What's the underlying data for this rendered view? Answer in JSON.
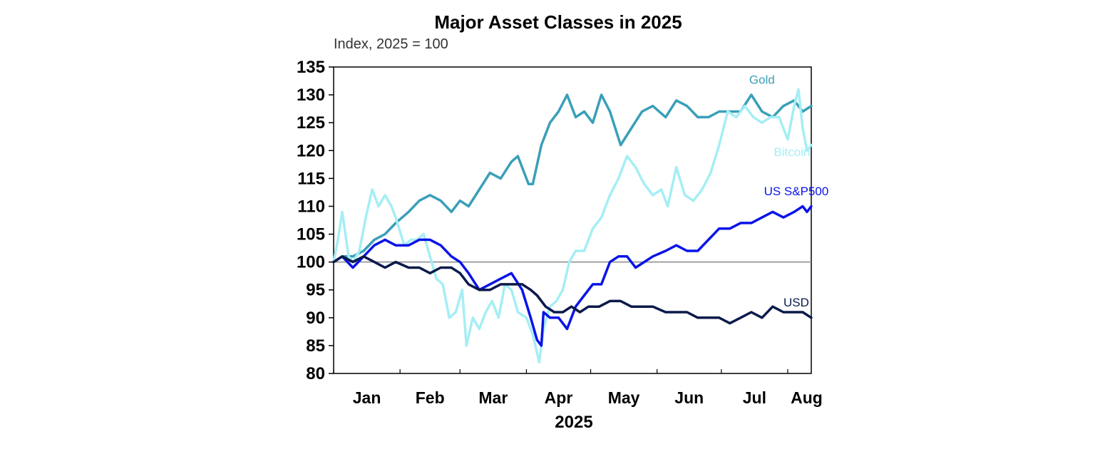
{
  "chart_data": {
    "type": "line",
    "title": "Major Asset Classes in 2025",
    "subtitle": "Index, 2025 = 100",
    "xlabel": "2025",
    "ylabel": "",
    "ylim": [
      80,
      135
    ],
    "yticks": [
      80,
      85,
      90,
      95,
      100,
      105,
      110,
      115,
      120,
      125,
      130,
      135
    ],
    "xlim": [
      "2025-01-01",
      "2025-08-12"
    ],
    "month_labels": [
      "Jan",
      "Feb",
      "Mar",
      "Apr",
      "May",
      "Jun",
      "Jul",
      "Aug"
    ],
    "month_dates": [
      "2025-01-01",
      "2025-02-01",
      "2025-03-01",
      "2025-04-01",
      "2025-05-01",
      "2025-06-01",
      "2025-07-01",
      "2025-08-01"
    ],
    "reference_line": 100,
    "grid": false,
    "series": [
      {
        "name": "Gold",
        "color": "#3a9fb9",
        "points": [
          [
            "2025-01-01",
            100
          ],
          [
            "2025-01-05",
            101
          ],
          [
            "2025-01-10",
            101
          ],
          [
            "2025-01-15",
            102
          ],
          [
            "2025-01-20",
            104
          ],
          [
            "2025-01-25",
            105
          ],
          [
            "2025-01-30",
            107
          ],
          [
            "2025-02-05",
            109
          ],
          [
            "2025-02-10",
            111
          ],
          [
            "2025-02-15",
            112
          ],
          [
            "2025-02-20",
            111
          ],
          [
            "2025-02-25",
            109
          ],
          [
            "2025-03-01",
            111
          ],
          [
            "2025-03-05",
            110
          ],
          [
            "2025-03-10",
            113
          ],
          [
            "2025-03-15",
            116
          ],
          [
            "2025-03-20",
            115
          ],
          [
            "2025-03-25",
            118
          ],
          [
            "2025-03-28",
            119
          ],
          [
            "2025-04-02",
            114
          ],
          [
            "2025-04-04",
            114
          ],
          [
            "2025-04-08",
            121
          ],
          [
            "2025-04-12",
            125
          ],
          [
            "2025-04-16",
            127
          ],
          [
            "2025-04-20",
            130
          ],
          [
            "2025-04-24",
            126
          ],
          [
            "2025-04-28",
            127
          ],
          [
            "2025-05-02",
            125
          ],
          [
            "2025-05-06",
            130
          ],
          [
            "2025-05-10",
            127
          ],
          [
            "2025-05-15",
            121
          ],
          [
            "2025-05-20",
            124
          ],
          [
            "2025-05-25",
            127
          ],
          [
            "2025-05-30",
            128
          ],
          [
            "2025-06-05",
            126
          ],
          [
            "2025-06-10",
            129
          ],
          [
            "2025-06-15",
            128
          ],
          [
            "2025-06-20",
            126
          ],
          [
            "2025-06-25",
            126
          ],
          [
            "2025-06-30",
            127
          ],
          [
            "2025-07-05",
            127
          ],
          [
            "2025-07-10",
            127
          ],
          [
            "2025-07-15",
            130
          ],
          [
            "2025-07-20",
            127
          ],
          [
            "2025-07-25",
            126
          ],
          [
            "2025-07-30",
            128
          ],
          [
            "2025-08-04",
            129
          ],
          [
            "2025-08-08",
            127
          ],
          [
            "2025-08-12",
            128
          ]
        ]
      },
      {
        "name": "Bitcoin",
        "color": "#a5eef4",
        "points": [
          [
            "2025-01-01",
            100
          ],
          [
            "2025-01-03",
            104
          ],
          [
            "2025-01-05",
            109
          ],
          [
            "2025-01-08",
            101
          ],
          [
            "2025-01-10",
            100
          ],
          [
            "2025-01-13",
            102
          ],
          [
            "2025-01-16",
            108
          ],
          [
            "2025-01-19",
            113
          ],
          [
            "2025-01-22",
            110
          ],
          [
            "2025-01-25",
            112
          ],
          [
            "2025-01-28",
            110
          ],
          [
            "2025-01-30",
            108
          ],
          [
            "2025-02-03",
            103
          ],
          [
            "2025-02-06",
            104
          ],
          [
            "2025-02-09",
            104
          ],
          [
            "2025-02-12",
            105
          ],
          [
            "2025-02-15",
            101
          ],
          [
            "2025-02-18",
            97
          ],
          [
            "2025-02-21",
            96
          ],
          [
            "2025-02-24",
            90
          ],
          [
            "2025-02-27",
            91
          ],
          [
            "2025-03-02",
            95
          ],
          [
            "2025-03-04",
            85
          ],
          [
            "2025-03-07",
            90
          ],
          [
            "2025-03-10",
            88
          ],
          [
            "2025-03-13",
            91
          ],
          [
            "2025-03-16",
            93
          ],
          [
            "2025-03-19",
            90
          ],
          [
            "2025-03-22",
            96
          ],
          [
            "2025-03-25",
            95
          ],
          [
            "2025-03-28",
            91
          ],
          [
            "2025-04-01",
            90
          ],
          [
            "2025-04-04",
            87
          ],
          [
            "2025-04-07",
            82
          ],
          [
            "2025-04-09",
            88
          ],
          [
            "2025-04-12",
            92
          ],
          [
            "2025-04-15",
            93
          ],
          [
            "2025-04-18",
            95
          ],
          [
            "2025-04-21",
            100
          ],
          [
            "2025-04-24",
            102
          ],
          [
            "2025-04-28",
            102
          ],
          [
            "2025-05-02",
            106
          ],
          [
            "2025-05-06",
            108
          ],
          [
            "2025-05-10",
            112
          ],
          [
            "2025-05-14",
            115
          ],
          [
            "2025-05-18",
            119
          ],
          [
            "2025-05-22",
            117
          ],
          [
            "2025-05-26",
            114
          ],
          [
            "2025-05-30",
            112
          ],
          [
            "2025-06-03",
            113
          ],
          [
            "2025-06-06",
            110
          ],
          [
            "2025-06-10",
            117
          ],
          [
            "2025-06-14",
            112
          ],
          [
            "2025-06-18",
            111
          ],
          [
            "2025-06-22",
            113
          ],
          [
            "2025-06-26",
            116
          ],
          [
            "2025-06-30",
            121
          ],
          [
            "2025-07-04",
            127
          ],
          [
            "2025-07-08",
            126
          ],
          [
            "2025-07-12",
            128
          ],
          [
            "2025-07-16",
            126
          ],
          [
            "2025-07-20",
            125
          ],
          [
            "2025-07-24",
            126
          ],
          [
            "2025-07-28",
            126
          ],
          [
            "2025-08-01",
            122
          ],
          [
            "2025-08-04",
            128
          ],
          [
            "2025-08-06",
            131
          ],
          [
            "2025-08-08",
            124
          ],
          [
            "2025-08-10",
            120
          ],
          [
            "2025-08-12",
            121
          ]
        ]
      },
      {
        "name": "US S&P500",
        "color": "#0a14e8",
        "points": [
          [
            "2025-01-01",
            100
          ],
          [
            "2025-01-05",
            101
          ],
          [
            "2025-01-10",
            99
          ],
          [
            "2025-01-15",
            101
          ],
          [
            "2025-01-20",
            103
          ],
          [
            "2025-01-25",
            104
          ],
          [
            "2025-01-30",
            103
          ],
          [
            "2025-02-05",
            103
          ],
          [
            "2025-02-10",
            104
          ],
          [
            "2025-02-15",
            104
          ],
          [
            "2025-02-20",
            103
          ],
          [
            "2025-02-25",
            101
          ],
          [
            "2025-03-01",
            100
          ],
          [
            "2025-03-05",
            98
          ],
          [
            "2025-03-10",
            95
          ],
          [
            "2025-03-15",
            96
          ],
          [
            "2025-03-20",
            97
          ],
          [
            "2025-03-25",
            98
          ],
          [
            "2025-03-30",
            95
          ],
          [
            "2025-04-03",
            90
          ],
          [
            "2025-04-06",
            86
          ],
          [
            "2025-04-08",
            85
          ],
          [
            "2025-04-09",
            91
          ],
          [
            "2025-04-12",
            90
          ],
          [
            "2025-04-16",
            90
          ],
          [
            "2025-04-20",
            88
          ],
          [
            "2025-04-24",
            92
          ],
          [
            "2025-04-28",
            94
          ],
          [
            "2025-05-02",
            96
          ],
          [
            "2025-05-06",
            96
          ],
          [
            "2025-05-10",
            100
          ],
          [
            "2025-05-14",
            101
          ],
          [
            "2025-05-18",
            101
          ],
          [
            "2025-05-22",
            99
          ],
          [
            "2025-05-26",
            100
          ],
          [
            "2025-05-30",
            101
          ],
          [
            "2025-06-05",
            102
          ],
          [
            "2025-06-10",
            103
          ],
          [
            "2025-06-15",
            102
          ],
          [
            "2025-06-20",
            102
          ],
          [
            "2025-06-25",
            104
          ],
          [
            "2025-06-30",
            106
          ],
          [
            "2025-07-05",
            106
          ],
          [
            "2025-07-10",
            107
          ],
          [
            "2025-07-15",
            107
          ],
          [
            "2025-07-20",
            108
          ],
          [
            "2025-07-25",
            109
          ],
          [
            "2025-07-30",
            108
          ],
          [
            "2025-08-04",
            109
          ],
          [
            "2025-08-08",
            110
          ],
          [
            "2025-08-10",
            109
          ],
          [
            "2025-08-12",
            110
          ]
        ]
      },
      {
        "name": "USD",
        "color": "#0a1a4a",
        "points": [
          [
            "2025-01-01",
            100
          ],
          [
            "2025-01-05",
            101
          ],
          [
            "2025-01-10",
            100
          ],
          [
            "2025-01-15",
            101
          ],
          [
            "2025-01-20",
            100
          ],
          [
            "2025-01-25",
            99
          ],
          [
            "2025-01-30",
            100
          ],
          [
            "2025-02-05",
            99
          ],
          [
            "2025-02-10",
            99
          ],
          [
            "2025-02-15",
            98
          ],
          [
            "2025-02-20",
            99
          ],
          [
            "2025-02-25",
            99
          ],
          [
            "2025-03-01",
            98
          ],
          [
            "2025-03-05",
            96
          ],
          [
            "2025-03-10",
            95
          ],
          [
            "2025-03-15",
            95
          ],
          [
            "2025-03-20",
            96
          ],
          [
            "2025-03-25",
            96
          ],
          [
            "2025-03-30",
            96
          ],
          [
            "2025-04-03",
            95
          ],
          [
            "2025-04-06",
            94
          ],
          [
            "2025-04-10",
            92
          ],
          [
            "2025-04-14",
            91
          ],
          [
            "2025-04-18",
            91
          ],
          [
            "2025-04-22",
            92
          ],
          [
            "2025-04-26",
            91
          ],
          [
            "2025-04-30",
            92
          ],
          [
            "2025-05-05",
            92
          ],
          [
            "2025-05-10",
            93
          ],
          [
            "2025-05-15",
            93
          ],
          [
            "2025-05-20",
            92
          ],
          [
            "2025-05-25",
            92
          ],
          [
            "2025-05-30",
            92
          ],
          [
            "2025-06-05",
            91
          ],
          [
            "2025-06-10",
            91
          ],
          [
            "2025-06-15",
            91
          ],
          [
            "2025-06-20",
            90
          ],
          [
            "2025-06-25",
            90
          ],
          [
            "2025-06-30",
            90
          ],
          [
            "2025-07-05",
            89
          ],
          [
            "2025-07-10",
            90
          ],
          [
            "2025-07-15",
            91
          ],
          [
            "2025-07-20",
            90
          ],
          [
            "2025-07-25",
            92
          ],
          [
            "2025-07-30",
            91
          ],
          [
            "2025-08-04",
            91
          ],
          [
            "2025-08-08",
            91
          ],
          [
            "2025-08-12",
            90
          ]
        ]
      }
    ],
    "series_labels": [
      {
        "text": "Gold",
        "date": "2025-07-20",
        "value": 132
      },
      {
        "text": "Bitcoin",
        "date": "2025-08-03",
        "value": 119
      },
      {
        "text": "US S&P500",
        "date": "2025-08-05",
        "value": 112
      },
      {
        "text": "USD",
        "date": "2025-08-05",
        "value": 92
      }
    ]
  }
}
